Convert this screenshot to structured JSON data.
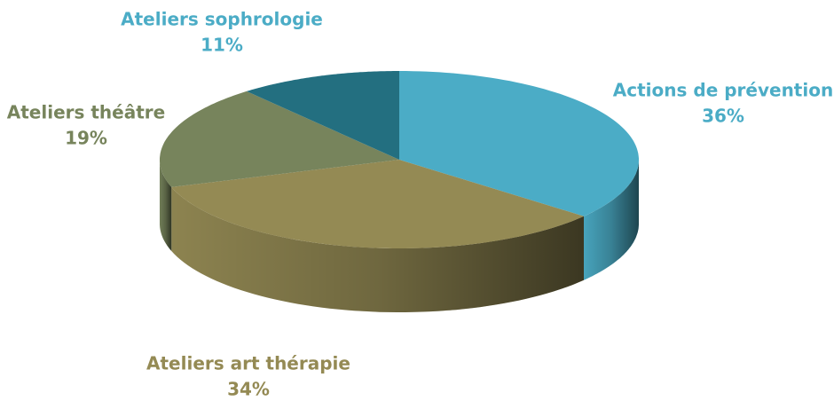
{
  "chart_data": {
    "type": "pie",
    "categories": [
      "Actions de prévention",
      "Ateliers art thérapie",
      "Ateliers théâtre",
      "Ateliers sophrologie"
    ],
    "values": [
      36,
      34,
      19,
      11
    ],
    "value_labels": [
      "36%",
      "34%",
      "19%",
      "11%"
    ],
    "colors": [
      "#4bacc6",
      "#948a54",
      "#77845c",
      "#236f80"
    ]
  }
}
